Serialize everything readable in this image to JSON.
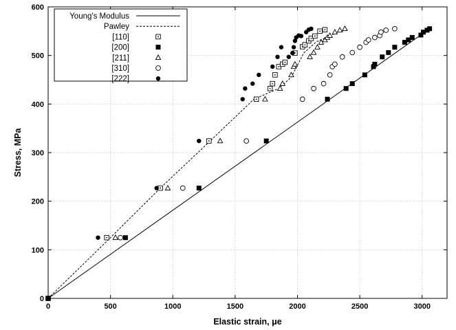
{
  "chart_data": {
    "type": "scatter",
    "xlabel": "Elastic strain, μe",
    "ylabel": "Stress, MPa",
    "xlim": [
      0,
      3200
    ],
    "ylim": [
      0,
      600
    ],
    "xticks": [
      "0",
      "500",
      "1000",
      "1500",
      "2000",
      "2500",
      "3000"
    ],
    "yticks": [
      "0",
      "100",
      "200",
      "300",
      "400",
      "500",
      "600"
    ],
    "grid": true,
    "legend_position": "top-left",
    "lines": [
      {
        "name": "Young's Modulus",
        "style": "solid",
        "points": [
          [
            0,
            0
          ],
          [
            3060,
            555
          ]
        ]
      },
      {
        "name": "Pawley",
        "style": "dashed",
        "points": [
          [
            0,
            0
          ],
          [
            500,
            125
          ],
          [
            900,
            227
          ],
          [
            1300,
            324
          ],
          [
            1650,
            410
          ],
          [
            1850,
            432
          ],
          [
            1950,
            455
          ],
          [
            2000,
            480
          ],
          [
            2050,
            505
          ],
          [
            2150,
            528
          ],
          [
            2300,
            545
          ],
          [
            2400,
            554
          ]
        ]
      }
    ],
    "series": [
      {
        "name": "[110]",
        "marker": "square-dot",
        "points": [
          [
            0,
            0
          ],
          [
            470,
            125
          ],
          [
            900,
            227
          ],
          [
            1290,
            324
          ],
          [
            1670,
            410
          ],
          [
            1780,
            432
          ],
          [
            1800,
            442
          ],
          [
            1820,
            460
          ],
          [
            1850,
            477
          ],
          [
            1880,
            482
          ],
          [
            1900,
            486
          ],
          [
            1980,
            505
          ],
          [
            2040,
            518
          ],
          [
            2060,
            522
          ],
          [
            2090,
            530
          ],
          [
            2110,
            535
          ],
          [
            2140,
            540
          ],
          [
            2180,
            550
          ],
          [
            2220,
            553
          ]
        ]
      },
      {
        "name": "[200]",
        "marker": "filled-square",
        "points": [
          [
            0,
            0
          ],
          [
            620,
            125
          ],
          [
            1210,
            227
          ],
          [
            1750,
            324
          ],
          [
            2240,
            410
          ],
          [
            2390,
            432
          ],
          [
            2440,
            442
          ],
          [
            2540,
            460
          ],
          [
            2610,
            477
          ],
          [
            2620,
            482
          ],
          [
            2680,
            497
          ],
          [
            2730,
            506
          ],
          [
            2780,
            517
          ],
          [
            2860,
            527
          ],
          [
            2890,
            532
          ],
          [
            2920,
            537
          ],
          [
            2990,
            542
          ],
          [
            3010,
            548
          ],
          [
            3040,
            552
          ],
          [
            3060,
            555
          ]
        ]
      },
      {
        "name": "[211]",
        "marker": "triangle",
        "points": [
          [
            0,
            0
          ],
          [
            540,
            125
          ],
          [
            960,
            227
          ],
          [
            1380,
            324
          ],
          [
            1740,
            410
          ],
          [
            1860,
            432
          ],
          [
            1880,
            442
          ],
          [
            1950,
            460
          ],
          [
            1970,
            477
          ],
          [
            1980,
            482
          ],
          [
            2100,
            497
          ],
          [
            2130,
            506
          ],
          [
            2160,
            517
          ],
          [
            2190,
            527
          ],
          [
            2220,
            532
          ],
          [
            2240,
            537
          ],
          [
            2260,
            541
          ],
          [
            2300,
            548
          ],
          [
            2340,
            552
          ],
          [
            2380,
            555
          ]
        ]
      },
      {
        "name": "[310]",
        "marker": "circle",
        "points": [
          [
            0,
            0
          ],
          [
            580,
            125
          ],
          [
            1080,
            227
          ],
          [
            1590,
            324
          ],
          [
            2040,
            410
          ],
          [
            2130,
            432
          ],
          [
            2210,
            442
          ],
          [
            2260,
            460
          ],
          [
            2280,
            477
          ],
          [
            2300,
            482
          ],
          [
            2360,
            497
          ],
          [
            2440,
            506
          ],
          [
            2500,
            517
          ],
          [
            2550,
            527
          ],
          [
            2570,
            532
          ],
          [
            2620,
            537
          ],
          [
            2660,
            541
          ],
          [
            2670,
            548
          ],
          [
            2710,
            552
          ],
          [
            2780,
            555
          ]
        ]
      },
      {
        "name": "[222]",
        "marker": "filled-circle",
        "points": [
          [
            0,
            0
          ],
          [
            400,
            125
          ],
          [
            870,
            227
          ],
          [
            1210,
            324
          ],
          [
            1560,
            410
          ],
          [
            1580,
            432
          ],
          [
            1640,
            442
          ],
          [
            1690,
            460
          ],
          [
            1800,
            477
          ],
          [
            1840,
            497
          ],
          [
            1870,
            517
          ],
          [
            1930,
            497
          ],
          [
            1960,
            505
          ],
          [
            1970,
            517
          ],
          [
            1980,
            530
          ],
          [
            1990,
            537
          ],
          [
            2010,
            541
          ],
          [
            2030,
            540
          ],
          [
            2070,
            548
          ],
          [
            2090,
            553
          ],
          [
            2110,
            555
          ]
        ]
      }
    ]
  }
}
